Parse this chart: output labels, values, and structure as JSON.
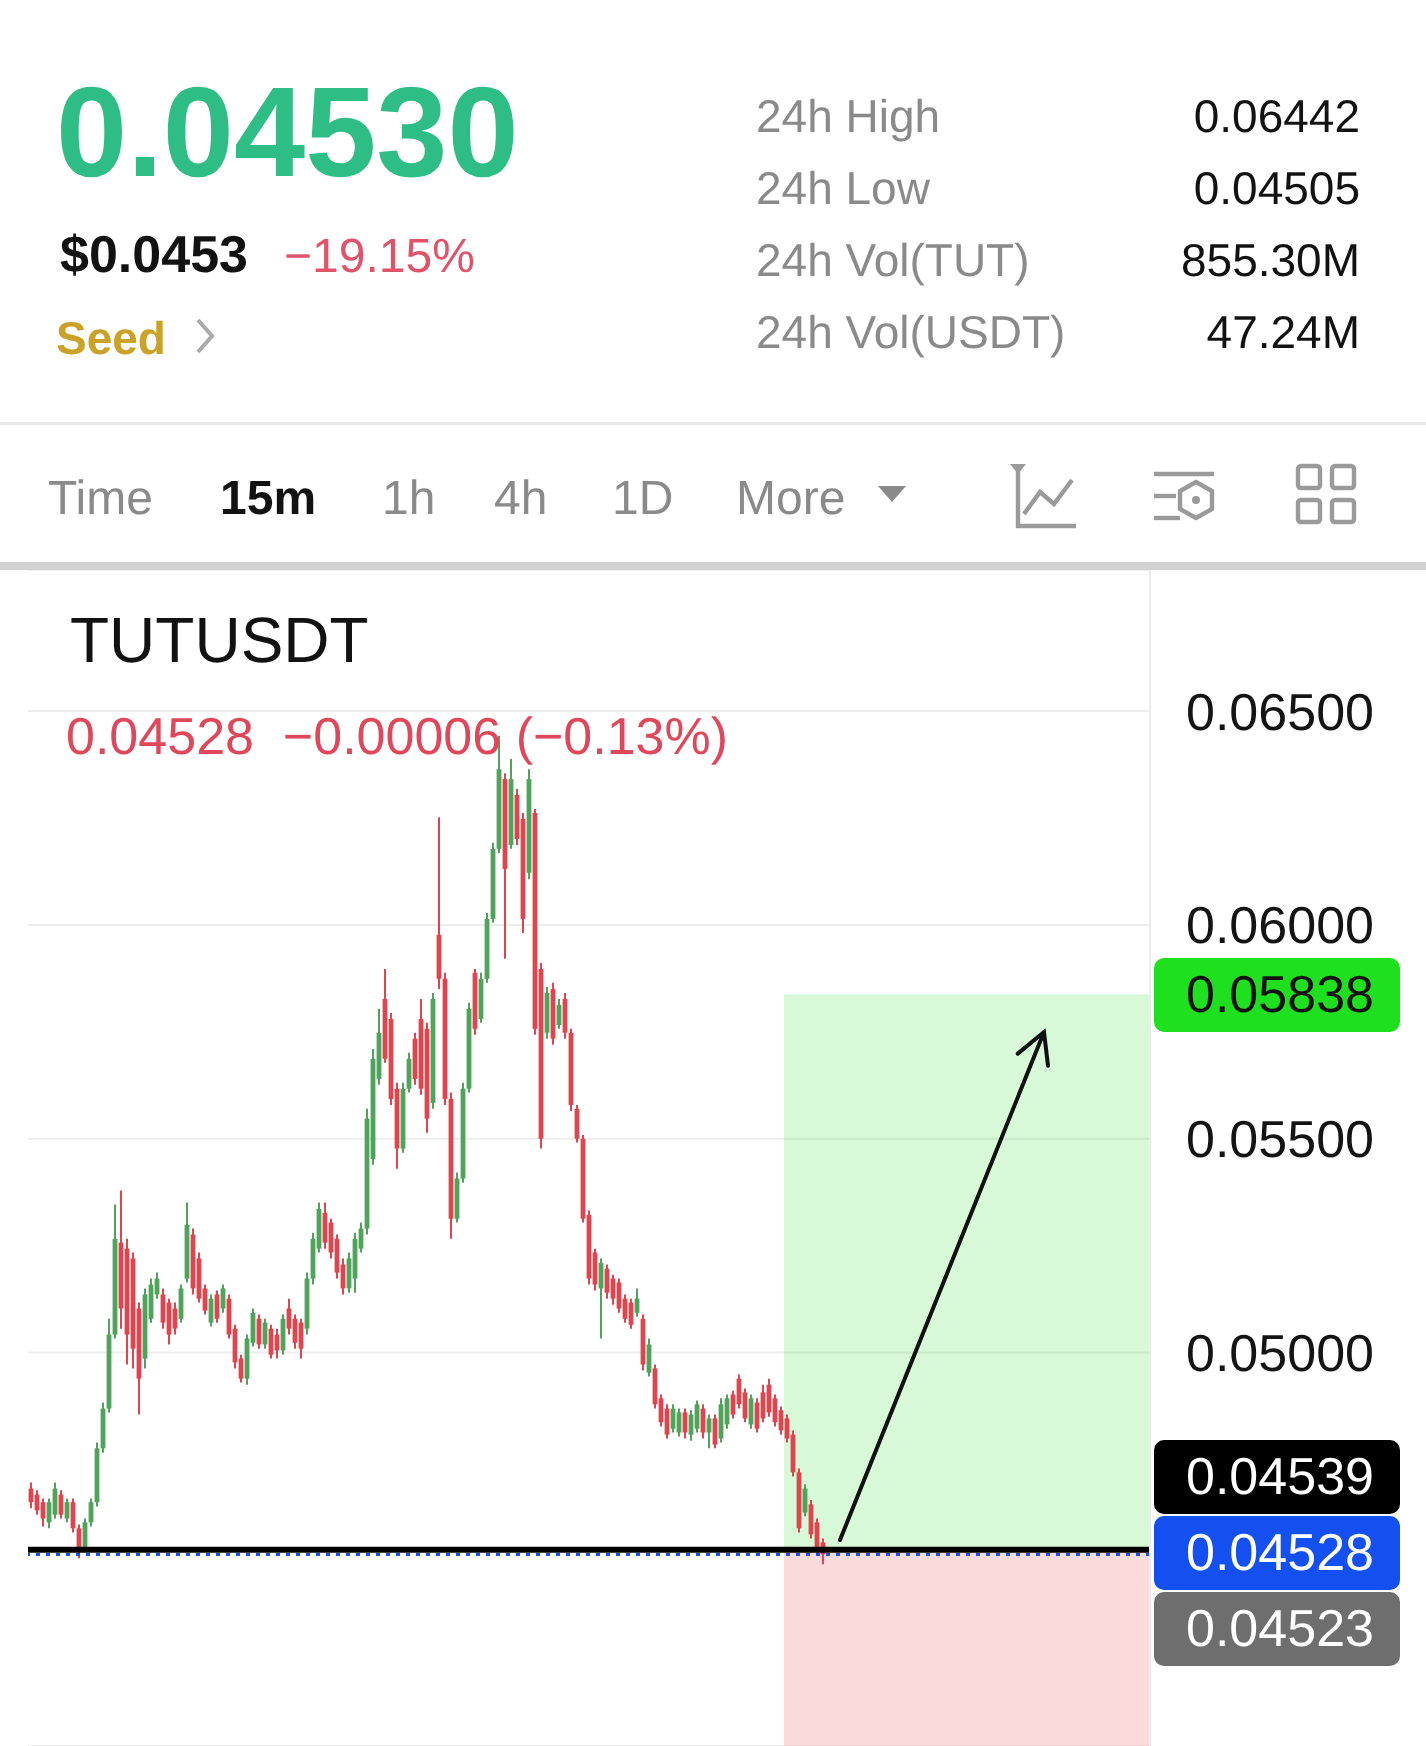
{
  "chart_data": {
    "type": "candlestick",
    "title": "TUTUSDT",
    "subtitle": "0.04528  −0.00006 (−0.13%)",
    "categories": [
      null,
      null,
      null,
      null,
      null,
      null,
      null,
      null,
      null,
      null,
      null,
      null,
      null,
      null,
      null,
      null,
      null,
      null,
      null,
      null,
      null,
      null,
      null,
      null,
      null,
      null,
      null,
      null,
      null,
      null,
      null,
      null,
      null,
      null,
      null,
      null,
      null,
      null,
      null,
      null,
      null,
      null,
      null,
      null,
      null,
      null,
      null,
      null,
      null,
      null,
      null,
      null,
      null,
      null,
      null,
      null,
      null,
      null,
      null,
      null,
      null,
      null,
      null,
      null,
      null,
      null,
      null,
      null,
      null,
      null,
      null,
      null,
      null,
      null,
      null,
      null,
      null,
      null,
      null,
      null,
      null,
      null,
      null,
      null,
      null,
      null,
      null,
      null,
      null,
      null,
      null,
      null,
      null,
      null,
      null,
      null,
      null,
      null,
      null,
      null,
      null,
      null,
      null,
      null,
      null,
      null,
      null,
      null,
      null,
      null,
      null,
      null,
      null,
      null,
      null,
      null,
      null,
      null,
      null,
      null,
      null,
      null,
      null,
      null,
      null,
      null,
      null,
      null,
      null,
      null,
      null,
      null,
      null,
      null,
      null,
      null,
      null,
      null,
      null,
      null,
      null,
      null,
      null,
      null,
      null,
      null,
      null,
      null,
      null,
      null,
      null,
      null,
      null,
      null,
      null,
      null,
      null,
      null,
      null,
      null,
      null,
      null,
      null,
      null,
      null,
      null,
      null,
      null,
      null,
      null,
      null,
      null,
      null,
      null,
      null,
      null,
      null,
      null,
      null,
      null,
      null,
      null,
      null,
      null,
      null,
      null,
      null
    ],
    "ohlc": [
      [
        0.04682,
        0.04696,
        0.04636,
        0.0465
      ],
      [
        0.04668,
        0.04678,
        0.04621,
        0.04631
      ],
      [
        0.0465,
        0.04659,
        0.04593,
        0.04612
      ],
      [
        0.04603,
        0.04659,
        0.04589,
        0.0465
      ],
      [
        0.04621,
        0.04696,
        0.04612,
        0.04682
      ],
      [
        0.04668,
        0.04678,
        0.04612,
        0.04621
      ],
      [
        0.04612,
        0.04659,
        0.04603,
        0.0465
      ],
      [
        0.0465,
        0.04659,
        0.04579,
        0.04589
      ],
      [
        0.04589,
        0.04598,
        0.04519,
        0.04537
      ],
      [
        0.04542,
        0.04612,
        0.04533,
        0.04603
      ],
      [
        0.04603,
        0.04659,
        0.04593,
        0.0465
      ],
      [
        0.0465,
        0.0479,
        0.0464,
        0.04776
      ],
      [
        0.04776,
        0.04883,
        0.04766,
        0.04869
      ],
      [
        0.04869,
        0.05079,
        0.0486,
        0.05042
      ],
      [
        0.05042,
        0.05346,
        0.05033,
        0.05266
      ],
      [
        0.05257,
        0.05379,
        0.05056,
        0.05103
      ],
      [
        0.05243,
        0.05266,
        0.04972,
        0.05042
      ],
      [
        0.0522,
        0.05234,
        0.04963,
        0.05009
      ],
      [
        0.05103,
        0.05117,
        0.04855,
        0.04939
      ],
      [
        0.04986,
        0.0515,
        0.04963,
        0.05136
      ],
      [
        0.05079,
        0.05173,
        0.0507,
        0.05159
      ],
      [
        0.05136,
        0.05187,
        0.05126,
        0.05173
      ],
      [
        0.05136,
        0.0515,
        0.05056,
        0.0507
      ],
      [
        0.05117,
        0.05126,
        0.05019,
        0.05042
      ],
      [
        0.05103,
        0.05117,
        0.05042,
        0.05056
      ],
      [
        0.05079,
        0.05159,
        0.0507,
        0.0515
      ],
      [
        0.05173,
        0.05351,
        0.05164,
        0.05299
      ],
      [
        0.05276,
        0.0529,
        0.05136,
        0.0515
      ],
      [
        0.0522,
        0.05234,
        0.05117,
        0.05126
      ],
      [
        0.0515,
        0.05159,
        0.05089,
        0.05098
      ],
      [
        0.0507,
        0.05136,
        0.05061,
        0.05126
      ],
      [
        0.05136,
        0.05145,
        0.0507,
        0.05079
      ],
      [
        0.05103,
        0.05159,
        0.05093,
        0.0515
      ],
      [
        0.05126,
        0.05136,
        0.05033,
        0.05042
      ],
      [
        0.05056,
        0.05065,
        0.04963,
        0.04977
      ],
      [
        0.04986,
        0.04995,
        0.0493,
        0.04939
      ],
      [
        0.04939,
        0.05042,
        0.04925,
        0.05033
      ],
      [
        0.05023,
        0.05103,
        0.05014,
        0.05093
      ],
      [
        0.05079,
        0.05089,
        0.05009,
        0.05019
      ],
      [
        0.05019,
        0.05079,
        0.05009,
        0.0507
      ],
      [
        0.05056,
        0.05065,
        0.04986,
        0.04995
      ],
      [
        0.05042,
        0.05056,
        0.04986,
        0.05005
      ],
      [
        0.05005,
        0.05089,
        0.04995,
        0.05079
      ],
      [
        0.05103,
        0.05126,
        0.05042,
        0.05056
      ],
      [
        0.05079,
        0.05089,
        0.05009,
        0.05023
      ],
      [
        0.0507,
        0.05079,
        0.04986,
        0.05009
      ],
      [
        0.05056,
        0.05187,
        0.05042,
        0.05173
      ],
      [
        0.05173,
        0.0528,
        0.05159,
        0.05266
      ],
      [
        0.05243,
        0.05351,
        0.05234,
        0.05336
      ],
      [
        0.05327,
        0.05351,
        0.05243,
        0.05257
      ],
      [
        0.05304,
        0.05313,
        0.0522,
        0.05234
      ],
      [
        0.05266,
        0.05276,
        0.05173,
        0.05187
      ],
      [
        0.05206,
        0.0522,
        0.05136,
        0.0515
      ],
      [
        0.0515,
        0.05234,
        0.0514,
        0.0522
      ],
      [
        0.05173,
        0.0528,
        0.0514,
        0.05266
      ],
      [
        0.05243,
        0.05304,
        0.05234,
        0.0529
      ],
      [
        0.0529,
        0.0557,
        0.05276,
        0.05547
      ],
      [
        0.05453,
        0.0571,
        0.05439,
        0.05687
      ],
      [
        0.0564,
        0.05804,
        0.05626,
        0.05748
      ],
      [
        0.05827,
        0.05897,
        0.05678,
        0.05687
      ],
      [
        0.0578,
        0.05794,
        0.05579,
        0.05593
      ],
      [
        0.05617,
        0.05631,
        0.0543,
        0.05477
      ],
      [
        0.05477,
        0.05631,
        0.05467,
        0.05617
      ],
      [
        0.05617,
        0.05701,
        0.05608,
        0.05687
      ],
      [
        0.05734,
        0.05748,
        0.05626,
        0.0564
      ],
      [
        0.0578,
        0.05827,
        0.05603,
        0.05617
      ],
      [
        0.05757,
        0.05771,
        0.05514,
        0.05547
      ],
      [
        0.05584,
        0.05841,
        0.0557,
        0.05827
      ],
      [
        0.05977,
        0.06252,
        0.0585,
        0.05874
      ],
      [
        0.05874,
        0.05888,
        0.05579,
        0.05593
      ],
      [
        0.05593,
        0.05608,
        0.05266,
        0.05313
      ],
      [
        0.05313,
        0.05421,
        0.05304,
        0.05407
      ],
      [
        0.05407,
        0.05631,
        0.05397,
        0.05617
      ],
      [
        0.05617,
        0.05818,
        0.05608,
        0.05804
      ],
      [
        0.05888,
        0.05897,
        0.05743,
        0.05757
      ],
      [
        0.0578,
        0.05888,
        0.05771,
        0.05874
      ],
      [
        0.05874,
        0.06028,
        0.05865,
        0.06014
      ],
      [
        0.06014,
        0.06192,
        0.06005,
        0.06178
      ],
      [
        0.06178,
        0.06442,
        0.06168,
        0.06364
      ],
      [
        0.06341,
        0.06355,
        0.05921,
        0.06131
      ],
      [
        0.06187,
        0.06388,
        0.06178,
        0.06341
      ],
      [
        0.06304,
        0.06318,
        0.06187,
        0.06201
      ],
      [
        0.06248,
        0.06262,
        0.05981,
        0.06014
      ],
      [
        0.06122,
        0.06364,
        0.06107,
        0.06341
      ],
      [
        0.06262,
        0.06271,
        0.05743,
        0.05757
      ],
      [
        0.05897,
        0.05911,
        0.05477,
        0.055
      ],
      [
        0.05748,
        0.05855,
        0.05734,
        0.05841
      ],
      [
        0.0585,
        0.05865,
        0.0572,
        0.05734
      ],
      [
        0.05766,
        0.05827,
        0.05757,
        0.05813
      ],
      [
        0.05827,
        0.05841,
        0.05734,
        0.05748
      ],
      [
        0.05748,
        0.05757,
        0.05565,
        0.05579
      ],
      [
        0.0557,
        0.05579,
        0.05491,
        0.055
      ],
      [
        0.055,
        0.05509,
        0.05304,
        0.05313
      ],
      [
        0.05322,
        0.05332,
        0.05159,
        0.05173
      ],
      [
        0.05234,
        0.05243,
        0.05145,
        0.05159
      ],
      [
        0.0515,
        0.0522,
        0.05033,
        0.0521
      ],
      [
        0.05196,
        0.05206,
        0.05126,
        0.0514
      ],
      [
        0.05173,
        0.05182,
        0.05112,
        0.05126
      ],
      [
        0.05164,
        0.05173,
        0.05093,
        0.05103
      ],
      [
        0.05126,
        0.05136,
        0.0507,
        0.05079
      ],
      [
        0.05117,
        0.05126,
        0.05056,
        0.05065
      ],
      [
        0.05093,
        0.0515,
        0.05084,
        0.05126
      ],
      [
        0.05079,
        0.05089,
        0.04958,
        0.04972
      ],
      [
        0.04953,
        0.05033,
        0.04944,
        0.05019
      ],
      [
        0.04963,
        0.04972,
        0.04869,
        0.04879
      ],
      [
        0.04893,
        0.04902,
        0.04827,
        0.04837
      ],
      [
        0.04869,
        0.04879,
        0.04799,
        0.04808
      ],
      [
        0.04822,
        0.04879,
        0.04813,
        0.04869
      ],
      [
        0.04813,
        0.04869,
        0.04804,
        0.0486
      ],
      [
        0.0486,
        0.04869,
        0.04799,
        0.04813
      ],
      [
        0.04808,
        0.04865,
        0.04794,
        0.04855
      ],
      [
        0.04822,
        0.04888,
        0.04813,
        0.04879
      ],
      [
        0.04869,
        0.04879,
        0.04799,
        0.04813
      ],
      [
        0.04813,
        0.04855,
        0.04776,
        0.04846
      ],
      [
        0.04846,
        0.04855,
        0.04776,
        0.04785
      ],
      [
        0.04799,
        0.04893,
        0.0479,
        0.04879
      ],
      [
        0.04832,
        0.04902,
        0.04822,
        0.04893
      ],
      [
        0.04902,
        0.04911,
        0.04846,
        0.04855
      ],
      [
        0.04939,
        0.04949,
        0.04869,
        0.04879
      ],
      [
        0.04907,
        0.04916,
        0.04837,
        0.04846
      ],
      [
        0.04832,
        0.04902,
        0.04822,
        0.04893
      ],
      [
        0.04883,
        0.04893,
        0.04813,
        0.04822
      ],
      [
        0.04907,
        0.04925,
        0.04837,
        0.04846
      ],
      [
        0.04925,
        0.04939,
        0.0485,
        0.0486
      ],
      [
        0.04893,
        0.04902,
        0.04827,
        0.04837
      ],
      [
        0.04865,
        0.04874,
        0.04808,
        0.04818
      ],
      [
        0.04846,
        0.04855,
        0.0479,
        0.04799
      ],
      [
        0.04808,
        0.04818,
        0.0471,
        0.0472
      ],
      [
        0.0472,
        0.04729,
        0.04579,
        0.04589
      ],
      [
        0.04626,
        0.04692,
        0.04617,
        0.04682
      ],
      [
        0.04645,
        0.04655,
        0.04565,
        0.04575
      ],
      [
        0.04603,
        0.04612,
        0.04528,
        0.04537
      ],
      [
        0.04556,
        0.04565,
        0.04505,
        0.04528
      ],
      null,
      null,
      null,
      null,
      null,
      null,
      null,
      null,
      null,
      null,
      null,
      null,
      null,
      null,
      null,
      null,
      null,
      null,
      null,
      null,
      null,
      null,
      null,
      null,
      null,
      null,
      null,
      null,
      null,
      null,
      null,
      null,
      null,
      null,
      null,
      null,
      null,
      null,
      null,
      null,
      null,
      null,
      null,
      null,
      null,
      null,
      null,
      null,
      null,
      null,
      null,
      null,
      null,
      null
    ],
    "colors": [
      "#e0454f",
      "#e0454f",
      "#e0454f",
      "#4fa35a",
      "#4fa35a",
      "#e0454f",
      "#4fa35a",
      "#e0454f",
      "#e0454f",
      "#4fa35a",
      "#4fa35a",
      "#4fa35a",
      "#4fa35a",
      "#4fa35a",
      "#4fa35a",
      "#e0454f",
      "#e0454f",
      "#e0454f",
      "#e0454f",
      "#4fa35a",
      "#4fa35a",
      "#4fa35a",
      "#e0454f",
      "#e0454f",
      "#e0454f",
      "#4fa35a",
      "#4fa35a",
      "#e0454f",
      "#e0454f",
      "#e0454f",
      "#4fa35a",
      "#e0454f",
      "#4fa35a",
      "#e0454f",
      "#e0454f",
      "#e0454f",
      "#4fa35a",
      "#4fa35a",
      "#e0454f",
      "#4fa35a",
      "#e0454f",
      "#e0454f",
      "#4fa35a",
      "#e0454f",
      "#e0454f",
      "#e0454f",
      "#4fa35a",
      "#4fa35a",
      "#4fa35a",
      "#e0454f",
      "#e0454f",
      "#e0454f",
      "#e0454f",
      "#4fa35a",
      "#4fa35a",
      "#4fa35a",
      "#4fa35a",
      "#4fa35a",
      "#4fa35a",
      "#e0454f",
      "#e0454f",
      "#e0454f",
      "#4fa35a",
      "#4fa35a",
      "#e0454f",
      "#e0454f",
      "#e0454f",
      "#4fa35a",
      "#e0454f",
      "#e0454f",
      "#e0454f",
      "#4fa35a",
      "#4fa35a",
      "#4fa35a",
      "#e0454f",
      "#4fa35a",
      "#4fa35a",
      "#4fa35a",
      "#4fa35a",
      "#e0454f",
      "#4fa35a",
      "#e0454f",
      "#e0454f",
      "#4fa35a",
      "#e0454f",
      "#e0454f",
      "#4fa35a",
      "#e0454f",
      "#4fa35a",
      "#e0454f",
      "#e0454f",
      "#e0454f",
      "#e0454f",
      "#e0454f",
      "#e0454f",
      "#4fa35a",
      "#e0454f",
      "#e0454f",
      "#e0454f",
      "#e0454f",
      "#e0454f",
      "#4fa35a",
      "#e0454f",
      "#4fa35a",
      "#e0454f",
      "#e0454f",
      "#e0454f",
      "#4fa35a",
      "#4fa35a",
      "#e0454f",
      "#4fa35a",
      "#4fa35a",
      "#e0454f",
      "#4fa35a",
      "#e0454f",
      "#4fa35a",
      "#4fa35a",
      "#e0454f",
      "#e0454f",
      "#e0454f",
      "#4fa35a",
      "#e0454f",
      "#e0454f",
      "#e0454f",
      "#e0454f",
      "#e0454f",
      "#e0454f",
      "#e0454f",
      "#e0454f",
      "#4fa35a",
      "#e0454f",
      "#e0454f",
      "#e0454f",
      null,
      null,
      null,
      null,
      null,
      null,
      null,
      null,
      null,
      null,
      null,
      null,
      null,
      null,
      null,
      null,
      null,
      null,
      null,
      null,
      null,
      null,
      null,
      null,
      null,
      null,
      null,
      null,
      null,
      null,
      null,
      null,
      null,
      null,
      null,
      null,
      null,
      null,
      null,
      null,
      null,
      null,
      null,
      null,
      null,
      null,
      null,
      null,
      null,
      null,
      null,
      null,
      null,
      null
    ],
    "ylim": [
      0.0408,
      0.0683
    ],
    "yticks": [
      {
        "value": 0.05,
        "label": "0.05000"
      },
      {
        "value": 0.055,
        "label": "0.05500"
      },
      {
        "value": 0.06,
        "label": "0.06000"
      },
      {
        "value": 0.065,
        "label": "0.06500"
      }
    ],
    "tick_labels": "y",
    "grid": "y",
    "ref_lines": [
      {
        "axis": "y",
        "value": 0.04539,
        "label": "0.04539",
        "color": "#000000",
        "line_style": "solid"
      },
      {
        "axis": "y",
        "value": 0.04528,
        "label": "0.04528",
        "color": "#1450f0",
        "line_style": "dotted"
      }
    ],
    "bands": [
      {
        "axis": "y",
        "from": 0.04539,
        "to": 0.05838,
        "label": "0.05838",
        "color": "#1fe01f"
      },
      {
        "axis": "y",
        "from": 0.0408,
        "to": 0.04539,
        "color": "#e8323c"
      }
    ],
    "annotations": [
      "0.04530",
      "$0.0453",
      "−19.15%",
      "Seed",
      "24h High",
      "0.06442",
      "24h Low",
      "0.04505",
      "24h Vol(TUT)",
      "855.30M",
      "24h Vol(USDT)",
      "47.24M",
      "Time",
      "15m",
      "1h",
      "4h",
      "1D",
      "More",
      "0.04523"
    ]
  }
}
